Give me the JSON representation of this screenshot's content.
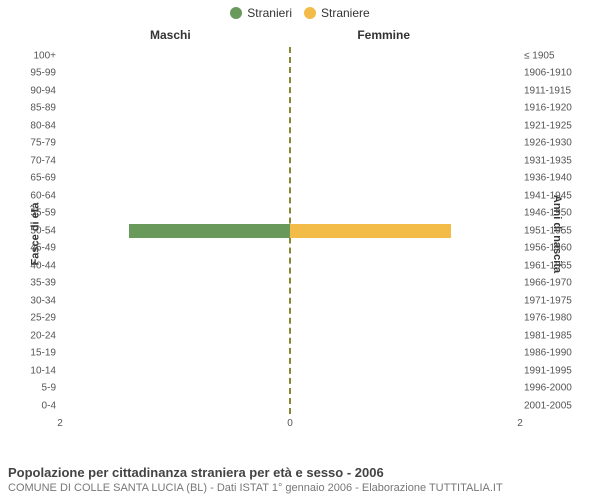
{
  "legend": {
    "items": [
      {
        "label": "Stranieri",
        "color": "#6a9a5b"
      },
      {
        "label": "Straniere",
        "color": "#f3bb47"
      }
    ]
  },
  "chart": {
    "type": "population-pyramid",
    "left_header": "Maschi",
    "right_header": "Femmine",
    "y_left_title": "Fasce di età",
    "y_right_title": "Anni di nascita",
    "center_line_color": "#888833",
    "background_color": "#ffffff",
    "bar_left_color": "#6a9a5b",
    "bar_right_color": "#f3bb47",
    "x_max": 2,
    "x_ticks_left": [
      "2"
    ],
    "x_tick_center": "0",
    "x_ticks_right": [
      "2"
    ],
    "label_fontsize": 10,
    "header_fontsize": 12,
    "rows": [
      {
        "age": "100+",
        "birth": "≤ 1905",
        "male": 0,
        "female": 0
      },
      {
        "age": "95-99",
        "birth": "1906-1910",
        "male": 0,
        "female": 0
      },
      {
        "age": "90-94",
        "birth": "1911-1915",
        "male": 0,
        "female": 0
      },
      {
        "age": "85-89",
        "birth": "1916-1920",
        "male": 0,
        "female": 0
      },
      {
        "age": "80-84",
        "birth": "1921-1925",
        "male": 0,
        "female": 0
      },
      {
        "age": "75-79",
        "birth": "1926-1930",
        "male": 0,
        "female": 0
      },
      {
        "age": "70-74",
        "birth": "1931-1935",
        "male": 0,
        "female": 0
      },
      {
        "age": "65-69",
        "birth": "1936-1940",
        "male": 0,
        "female": 0
      },
      {
        "age": "60-64",
        "birth": "1941-1945",
        "male": 0,
        "female": 0
      },
      {
        "age": "55-59",
        "birth": "1946-1950",
        "male": 0,
        "female": 0
      },
      {
        "age": "50-54",
        "birth": "1951-1955",
        "male": 1.4,
        "female": 1.4
      },
      {
        "age": "45-49",
        "birth": "1956-1960",
        "male": 0,
        "female": 0
      },
      {
        "age": "40-44",
        "birth": "1961-1965",
        "male": 0,
        "female": 0
      },
      {
        "age": "35-39",
        "birth": "1966-1970",
        "male": 0,
        "female": 0
      },
      {
        "age": "30-34",
        "birth": "1971-1975",
        "male": 0,
        "female": 0
      },
      {
        "age": "25-29",
        "birth": "1976-1980",
        "male": 0,
        "female": 0
      },
      {
        "age": "20-24",
        "birth": "1981-1985",
        "male": 0,
        "female": 0
      },
      {
        "age": "15-19",
        "birth": "1986-1990",
        "male": 0,
        "female": 0
      },
      {
        "age": "10-14",
        "birth": "1991-1995",
        "male": 0,
        "female": 0
      },
      {
        "age": "5-9",
        "birth": "1996-2000",
        "male": 0,
        "female": 0
      },
      {
        "age": "0-4",
        "birth": "2001-2005",
        "male": 0,
        "female": 0
      }
    ]
  },
  "footer": {
    "title": "Popolazione per cittadinanza straniera per età e sesso - 2006",
    "subtitle": "COMUNE DI COLLE SANTA LUCIA (BL) - Dati ISTAT 1° gennaio 2006 - Elaborazione TUTTITALIA.IT"
  }
}
